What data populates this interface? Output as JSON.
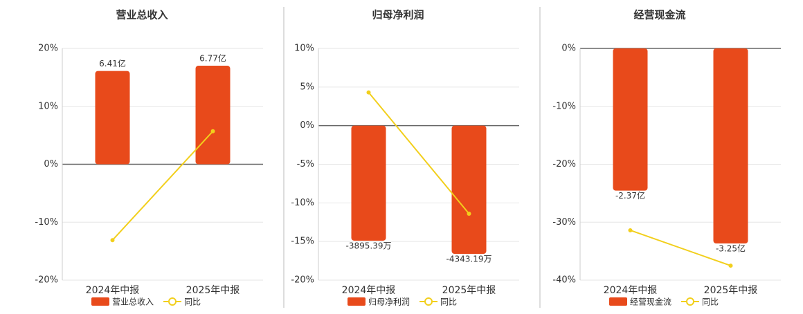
{
  "chart_data": [
    {
      "type": "bar-line",
      "title": "营业总收入",
      "categories": [
        "2024年中报",
        "2025年中报"
      ],
      "series": [
        {
          "name": "营业总收入",
          "color": "#e84a1b",
          "axis": "y2",
          "values": [
            6.41,
            6.77
          ],
          "value_labels": [
            "6.41亿",
            "6.77亿"
          ]
        },
        {
          "name": "同比",
          "color": "#f2cf1c",
          "values": [
            -13.1,
            5.7
          ]
        }
      ],
      "ylim": [
        -20,
        20
      ],
      "yticks": [
        {
          "value": -20,
          "label": "-20%"
        },
        {
          "value": -10,
          "label": "-10%"
        },
        {
          "value": 0,
          "label": "0%"
        },
        {
          "value": 10,
          "label": "10%"
        },
        {
          "value": 20,
          "label": "20%"
        }
      ],
      "y2lim": [
        -7.96,
        7.96
      ],
      "grid": true
    },
    {
      "type": "bar-line",
      "title": "归母净利润",
      "categories": [
        "2024年中报",
        "2025年中报"
      ],
      "series": [
        {
          "name": "归母净利润",
          "color": "#e84a1b",
          "axis": "y2",
          "values": [
            -3895.39,
            -4343.19
          ],
          "value_labels": [
            "-3895.39万",
            "-4343.19万"
          ]
        },
        {
          "name": "同比",
          "color": "#f2cf1c",
          "values": [
            4.3,
            -11.4
          ]
        }
      ],
      "ylim": [
        -20,
        10
      ],
      "yticks": [
        {
          "value": -20,
          "label": "-20%"
        },
        {
          "value": -15,
          "label": "-15%"
        },
        {
          "value": -10,
          "label": "-10%"
        },
        {
          "value": -5,
          "label": "-5%"
        },
        {
          "value": 0,
          "label": "0%"
        },
        {
          "value": 5,
          "label": "5%"
        },
        {
          "value": 10,
          "label": "10%"
        }
      ],
      "y2lim": [
        -5232,
        2616
      ],
      "grid": true
    },
    {
      "type": "bar-line",
      "title": "经营现金流",
      "categories": [
        "2024年中报",
        "2025年中报"
      ],
      "series": [
        {
          "name": "经营现金流",
          "color": "#e84a1b",
          "axis": "y2",
          "values": [
            -2.37,
            -3.25
          ],
          "value_labels": [
            "-2.37亿",
            "-3.25亿"
          ]
        },
        {
          "name": "同比",
          "color": "#f2cf1c",
          "values": [
            -31.4,
            -37.5
          ]
        }
      ],
      "ylim": [
        -40,
        0
      ],
      "yticks": [
        {
          "value": -40,
          "label": "-40%"
        },
        {
          "value": -30,
          "label": "-30%"
        },
        {
          "value": -20,
          "label": "-20%"
        },
        {
          "value": -10,
          "label": "-10%"
        },
        {
          "value": 0,
          "label": "0%"
        }
      ],
      "y2lim": [
        -3.86,
        0
      ],
      "grid": true
    }
  ]
}
